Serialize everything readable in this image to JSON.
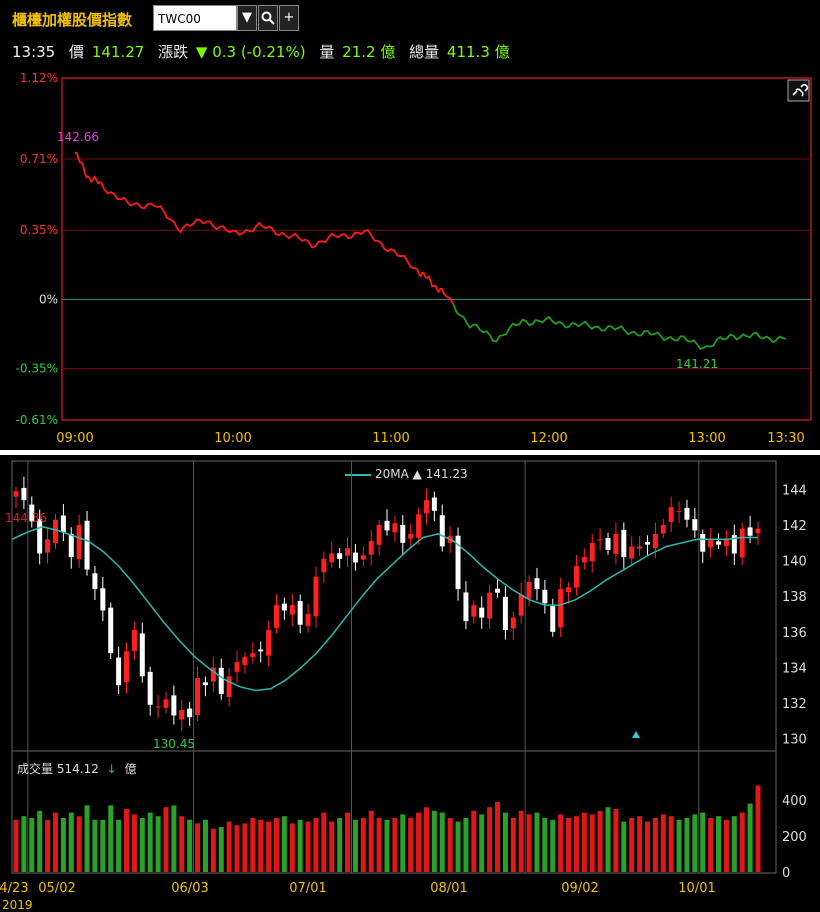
{
  "header": {
    "title": "櫃檯加權股價指數",
    "symbol": "TWC00",
    "dropdown_icon": "triangle-down-icon",
    "search_icon": "magnifier-icon",
    "add_icon": "plus-icon"
  },
  "quote": {
    "time": "13:35",
    "price_label": "價",
    "price": "141.27",
    "change_label": "漲跌",
    "change": "▼ 0.3 (-0.21%)",
    "volume_label": "量",
    "volume": "21.2 億",
    "total_volume_label": "總量",
    "total_volume": "411.3 億"
  },
  "chart_data": [
    {
      "type": "line",
      "y_tick_labels": [
        "1.12%",
        "0.71%",
        "0.35%",
        "0%",
        "-0.35%",
        "-0.61%"
      ],
      "x_tick_labels": [
        "09:00",
        "10:00",
        "11:00",
        "12:00",
        "13:00",
        "13:30"
      ],
      "ylim": [
        -0.61,
        1.12
      ],
      "annotations": [
        "142.66",
        "141.21"
      ],
      "x": [
        "09:00",
        "09:05",
        "09:10",
        "09:20",
        "09:30",
        "09:40",
        "09:50",
        "10:00",
        "10:10",
        "10:20",
        "10:30",
        "10:40",
        "10:50",
        "11:00",
        "11:10",
        "11:15",
        "11:20",
        "11:30",
        "11:40",
        "11:50",
        "12:00",
        "12:10",
        "12:20",
        "12:30",
        "12:40",
        "12:50",
        "13:00",
        "13:10",
        "13:20",
        "13:30"
      ],
      "values": [
        0.74,
        0.62,
        0.58,
        0.48,
        0.48,
        0.36,
        0.4,
        0.33,
        0.37,
        0.33,
        0.28,
        0.32,
        0.34,
        0.25,
        0.15,
        0.09,
        0.03,
        -0.13,
        -0.2,
        -0.11,
        -0.11,
        -0.13,
        -0.14,
        -0.16,
        -0.18,
        -0.2,
        -0.24,
        -0.18,
        -0.19,
        -0.2
      ],
      "up_color": "#ff1a1a",
      "down_color": "#1f9e1f"
    },
    {
      "type": "candlestick",
      "title": "20MA ▲ 141.23",
      "series_name": "20MA",
      "ma_value": "141.23",
      "y_tick_labels": [
        "144",
        "142",
        "140",
        "138",
        "136",
        "134",
        "132",
        "130"
      ],
      "x_tick_labels": [
        "4/23",
        "05/02",
        "06/03",
        "07/01",
        "08/01",
        "09/02",
        "10/01"
      ],
      "year_label": "2019",
      "annotations": [
        "144.36",
        "130.45"
      ],
      "ylim": [
        129.3,
        145.6
      ],
      "closes": [
        143.9,
        143.4,
        142.2,
        140.4,
        141.2,
        142.3,
        141.6,
        140.2,
        142.0,
        139.5,
        138.4,
        137.2,
        134.8,
        133.0,
        134.9,
        136.1,
        133.5,
        131.9,
        131.8,
        132.2,
        131.3,
        131.6,
        131.2,
        133.4,
        133.0,
        134.0,
        132.5,
        133.5,
        134.3,
        134.6,
        134.8,
        134.9,
        136.1,
        137.5,
        137.2,
        137.5,
        136.4,
        137.0,
        139.1,
        140.1,
        140.4,
        140.1,
        140.7,
        139.9,
        140.3,
        141.1,
        142.0,
        141.7,
        142.1,
        141.0,
        141.5,
        142.6,
        143.4,
        142.8,
        140.8,
        141.4,
        138.4,
        136.6,
        137.5,
        136.8,
        138.2,
        138.2,
        136.1,
        136.8,
        138.1,
        138.8,
        138.4,
        137.6,
        136.0,
        138.4,
        138.5,
        139.7,
        140.2,
        141.0,
        141.2,
        140.6,
        141.5,
        140.2,
        140.8,
        140.8,
        140.9,
        141.5,
        142.0,
        143.0,
        142.8,
        142.3,
        141.7,
        140.5,
        141.2,
        140.9,
        141.2,
        140.4,
        141.8,
        141.4,
        141.8
      ],
      "ma": [
        141.2,
        141.6,
        141.9,
        141.7,
        141.4,
        141.1,
        140.5,
        139.7,
        138.7,
        137.6,
        136.5,
        135.5,
        134.6,
        133.9,
        133.3,
        132.9,
        132.7,
        132.8,
        133.3,
        134.0,
        134.8,
        135.8,
        136.9,
        138.0,
        139.0,
        139.8,
        140.6,
        141.3,
        141.5,
        141.1,
        140.4,
        139.6,
        138.9,
        138.3,
        137.8,
        137.5,
        137.5,
        137.8,
        138.3,
        138.9,
        139.4,
        139.9,
        140.4,
        140.8,
        141.0,
        141.2,
        141.2,
        141.2,
        141.3,
        141.3
      ],
      "volume_label": "成交量",
      "volume_value": "514.12",
      "volume_unit": "億",
      "volume_ticks": [
        "400",
        "200",
        "0"
      ],
      "volumes": [
        290,
        310,
        300,
        340,
        290,
        330,
        300,
        330,
        310,
        370,
        290,
        290,
        370,
        290,
        350,
        320,
        300,
        330,
        310,
        360,
        370,
        310,
        290,
        270,
        290,
        240,
        250,
        280,
        260,
        270,
        300,
        290,
        280,
        300,
        310,
        270,
        290,
        280,
        300,
        330,
        280,
        300,
        330,
        290,
        300,
        340,
        300,
        290,
        300,
        320,
        300,
        330,
        360,
        340,
        330,
        300,
        280,
        300,
        340,
        320,
        360,
        390,
        330,
        300,
        340,
        320,
        330,
        300,
        290,
        320,
        300,
        310,
        330,
        320,
        340,
        360,
        350,
        280,
        300,
        310,
        280,
        300,
        320,
        310,
        290,
        300,
        320,
        330,
        300,
        310,
        290,
        310,
        330,
        380,
        480
      ]
    }
  ]
}
